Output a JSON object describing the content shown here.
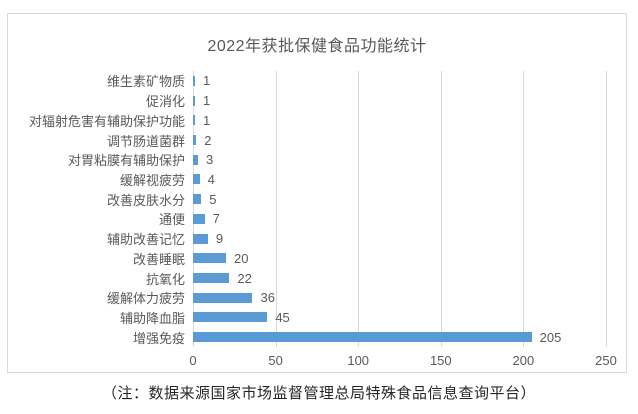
{
  "chart_data": {
    "type": "bar",
    "orientation": "horizontal",
    "title": "2022年获批保健食品功能统计",
    "categories": [
      "维生素矿物质",
      "促消化",
      "对辐射危害有辅助保护功能",
      "调节肠道菌群",
      "对胃粘膜有辅助保护",
      "缓解视疲劳",
      "改善皮肤水分",
      "通便",
      "辅助改善记忆",
      "改善睡眠",
      "抗氧化",
      "缓解体力疲劳",
      "辅助降血脂",
      "增强免疫"
    ],
    "values": [
      1,
      1,
      1,
      2,
      3,
      4,
      5,
      7,
      9,
      20,
      22,
      36,
      45,
      205
    ],
    "xlabel": "",
    "ylabel": "",
    "xlim": [
      0,
      250
    ],
    "x_ticks": [
      "0",
      "50",
      "100",
      "150",
      "200",
      "250"
    ],
    "grid": true,
    "legend": false,
    "bar_color": "#5B9BD5",
    "gridline_color": "#d9d9d9",
    "text_color": "#595959"
  },
  "footnote": "（注：数据来源国家市场监督管理总局特殊食品信息查询平台）"
}
